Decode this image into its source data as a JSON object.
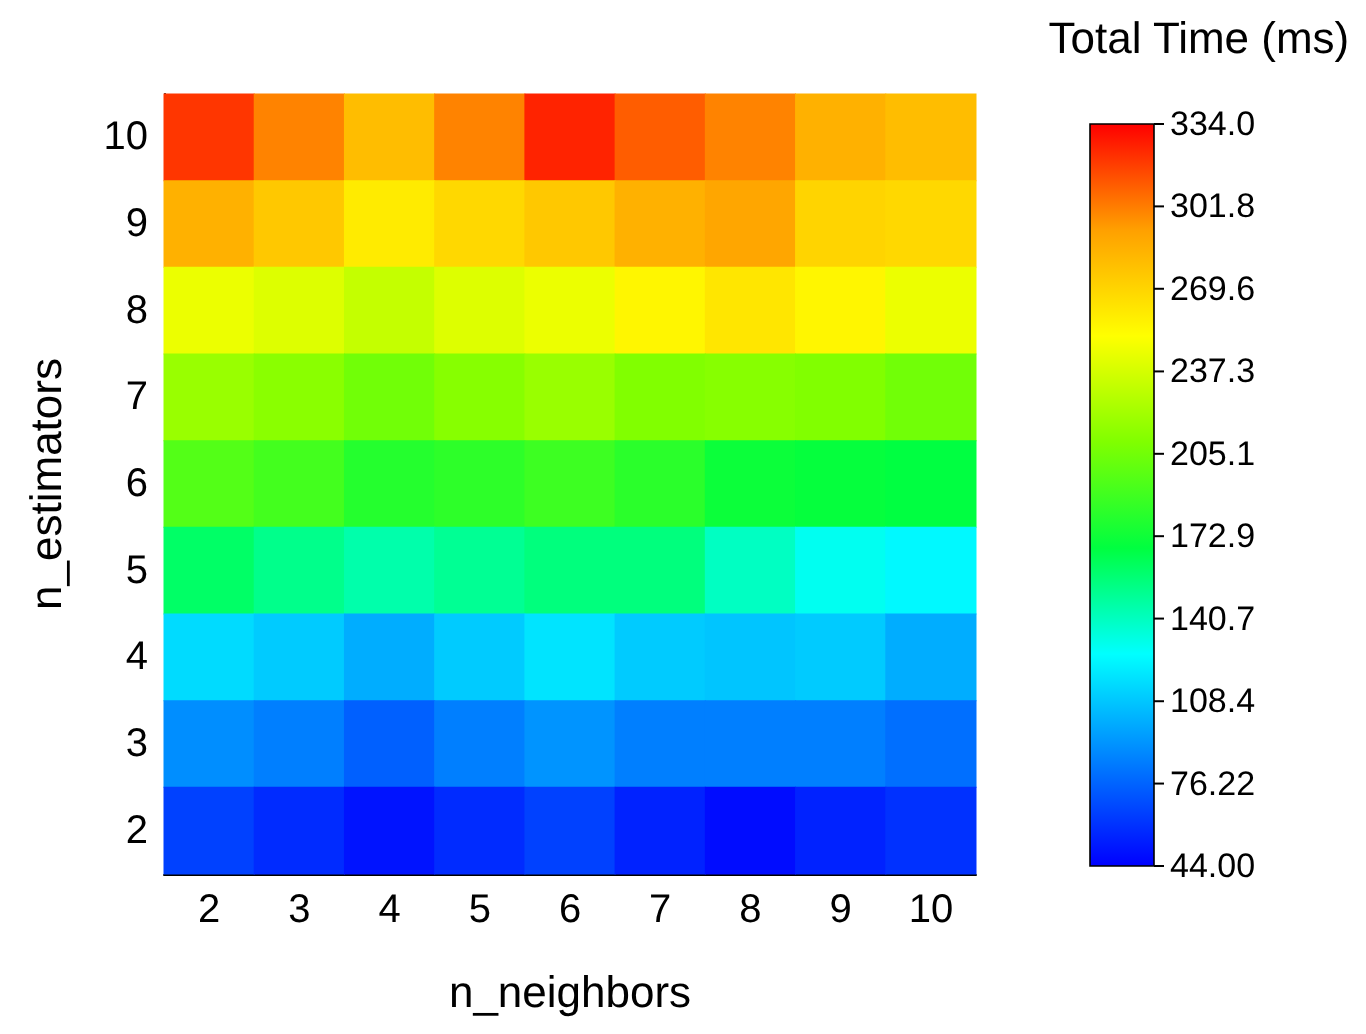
{
  "chart_data": {
    "type": "heatmap",
    "xlabel": "n_neighbors",
    "ylabel": "n_estimators",
    "clabel": "Total Time (ms)",
    "categories": [
      "2",
      "3",
      "4",
      "5",
      "6",
      "7",
      "8",
      "9",
      "10"
    ],
    "y_categories": [
      "10",
      "9",
      "8",
      "7",
      "6",
      "5",
      "4",
      "3",
      "2"
    ],
    "cells": [
      [
        320,
        300,
        280,
        300,
        325,
        310,
        300,
        285,
        280
      ],
      [
        285,
        275,
        260,
        268,
        275,
        285,
        290,
        270,
        268
      ],
      [
        245,
        240,
        232,
        240,
        245,
        255,
        262,
        255,
        245
      ],
      [
        218,
        213,
        205,
        212,
        218,
        210,
        212,
        210,
        205
      ],
      [
        195,
        190,
        180,
        183,
        188,
        182,
        172,
        170,
        168
      ],
      [
        160,
        152,
        145,
        150,
        155,
        155,
        140,
        130,
        125
      ],
      [
        115,
        110,
        100,
        110,
        118,
        110,
        108,
        110,
        100
      ],
      [
        90,
        85,
        75,
        85,
        92,
        85,
        85,
        85,
        80
      ],
      [
        65,
        58,
        50,
        58,
        65,
        55,
        48,
        55,
        60
      ]
    ],
    "clim": [
      44,
      334
    ],
    "cticks": [
      {
        "value": 44,
        "label": "44.00"
      },
      {
        "value": 76.22,
        "label": "76.22"
      },
      {
        "value": 108.4,
        "label": "108.4"
      },
      {
        "value": 140.7,
        "label": "140.7"
      },
      {
        "value": 172.9,
        "label": "172.9"
      },
      {
        "value": 205.1,
        "label": "205.1"
      },
      {
        "value": 237.3,
        "label": "237.3"
      },
      {
        "value": 269.6,
        "label": "269.6"
      },
      {
        "value": 301.8,
        "label": "301.8"
      },
      {
        "value": 334,
        "label": "334.0"
      }
    ]
  }
}
